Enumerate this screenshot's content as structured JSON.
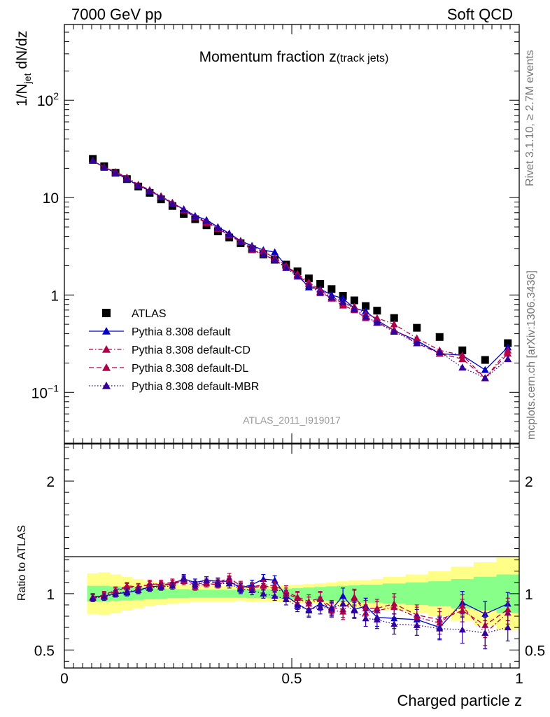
{
  "header": {
    "left": "7000 GeV pp",
    "right": "Soft QCD"
  },
  "side_labels": {
    "rivet": "Rivet 3.1.10, ≥ 2.7M events",
    "mcplots": "mcplots.cern.ch [arXiv:1306.3436]"
  },
  "chart_data": [
    {
      "type": "scatter",
      "panel": "main",
      "title": "Momentum fraction z(track jets)",
      "title_main": "Momentum fraction z",
      "title_sub": "(track jets)",
      "watermark": "ATLAS_2011_I919017",
      "ylabel": "1/N_jet dN/dz",
      "ylabel_parts": {
        "a": "1/N",
        "sub": "jet",
        "b": " dN/dz"
      },
      "yscale": "log",
      "ylim": [
        0.03,
        600
      ],
      "xlim": [
        0,
        1
      ],
      "yticks": [
        {
          "v": 0.1,
          "base": "10",
          "exp": "−1"
        },
        {
          "v": 1,
          "label": "1"
        },
        {
          "v": 10,
          "label": "10"
        },
        {
          "v": 100,
          "base": "10",
          "exp": "2"
        }
      ],
      "legend_position": "bottom-left",
      "x": [
        0.0625,
        0.0875,
        0.1125,
        0.1375,
        0.1625,
        0.1875,
        0.2125,
        0.2375,
        0.2625,
        0.2875,
        0.3125,
        0.3375,
        0.3625,
        0.3875,
        0.4125,
        0.4375,
        0.4625,
        0.4875,
        0.5125,
        0.5375,
        0.5625,
        0.5875,
        0.6125,
        0.6375,
        0.6625,
        0.6875,
        0.725,
        0.775,
        0.825,
        0.875,
        0.925,
        0.975
      ],
      "series": [
        {
          "name": "ATLAS",
          "color": "#000000",
          "marker": "square",
          "line": "none",
          "values": [
            25,
            21,
            18,
            15.5,
            13,
            11.2,
            9.6,
            8.2,
            6.8,
            6.0,
            5.2,
            4.5,
            3.9,
            3.4,
            2.95,
            2.6,
            2.3,
            2.05,
            1.75,
            1.48,
            1.3,
            1.15,
            0.98,
            0.88,
            0.77,
            0.69,
            0.58,
            0.46,
            0.37,
            0.27,
            0.215,
            0.32
          ]
        },
        {
          "name": "Pythia 8.308 default",
          "color": "#0000cc",
          "marker": "triangle",
          "line": "solid",
          "values": [
            24,
            20.5,
            18,
            15.5,
            13.3,
            11.8,
            10.2,
            8.8,
            7.6,
            6.5,
            5.9,
            5.0,
            4.3,
            3.6,
            3.2,
            2.9,
            2.75,
            2.0,
            1.6,
            1.2,
            1.15,
            1.0,
            0.92,
            0.73,
            0.68,
            0.55,
            0.43,
            0.34,
            0.25,
            0.24,
            0.17,
            0.29
          ]
        },
        {
          "name": "Pythia 8.308 default-CD",
          "color": "#b0004a",
          "marker": "triangle",
          "line": "dashdot",
          "values": [
            24,
            20.6,
            18.4,
            16.2,
            13.6,
            12.0,
            10.4,
            8.9,
            7.5,
            6.4,
            5.6,
            4.9,
            4.2,
            3.6,
            3.1,
            2.8,
            2.4,
            2.0,
            1.65,
            1.35,
            1.12,
            0.95,
            0.82,
            0.76,
            0.63,
            0.58,
            0.5,
            0.36,
            0.27,
            0.24,
            0.14,
            0.27
          ]
        },
        {
          "name": "Pythia 8.308 default-DL",
          "color": "#b0004a",
          "marker": "triangle",
          "line": "dashed",
          "values": [
            24,
            20.5,
            18.3,
            16.0,
            13.5,
            11.8,
            10.2,
            8.7,
            7.4,
            6.3,
            5.5,
            4.8,
            4.1,
            3.5,
            2.9,
            2.6,
            2.3,
            1.95,
            1.6,
            1.3,
            1.08,
            0.92,
            0.78,
            0.7,
            0.58,
            0.52,
            0.44,
            0.32,
            0.25,
            0.22,
            0.14,
            0.25
          ]
        },
        {
          "name": "Pythia 8.308 default-MBR",
          "color": "#33009e",
          "marker": "triangle",
          "line": "dotted",
          "values": [
            24,
            20.3,
            18.0,
            15.6,
            13.3,
            11.7,
            10.1,
            8.7,
            7.6,
            6.4,
            5.8,
            4.9,
            4.2,
            3.5,
            3.0,
            2.6,
            2.3,
            1.9,
            1.55,
            1.25,
            1.05,
            0.95,
            0.85,
            0.72,
            0.6,
            0.52,
            0.42,
            0.32,
            0.26,
            0.18,
            0.14,
            0.22
          ]
        }
      ]
    },
    {
      "type": "scatter",
      "panel": "ratio",
      "ylabel": "Ratio to ATLAS",
      "xlabel": "Charged particle z",
      "ylim": [
        0.34,
        2.33
      ],
      "xlim": [
        0,
        1
      ],
      "yticks": [
        {
          "v": 0.5,
          "label": "0.5"
        },
        {
          "v": 1,
          "label": "1"
        },
        {
          "v": 2,
          "label": "2"
        }
      ],
      "xticks": [
        {
          "v": 0,
          "label": "0"
        },
        {
          "v": 0.5,
          "label": "0.5"
        },
        {
          "v": 1,
          "label": "1"
        }
      ],
      "bins": [
        0.05,
        0.075,
        0.1,
        0.125,
        0.15,
        0.175,
        0.2,
        0.225,
        0.25,
        0.275,
        0.3,
        0.325,
        0.35,
        0.375,
        0.4,
        0.425,
        0.45,
        0.475,
        0.5,
        0.525,
        0.55,
        0.575,
        0.6,
        0.625,
        0.65,
        0.675,
        0.7,
        0.75,
        0.8,
        0.85,
        0.9,
        0.95,
        1.0
      ],
      "band_stat": [
        0.07,
        0.07,
        0.065,
        0.06,
        0.055,
        0.05,
        0.045,
        0.04,
        0.04,
        0.035,
        0.035,
        0.035,
        0.035,
        0.035,
        0.04,
        0.04,
        0.04,
        0.045,
        0.05,
        0.055,
        0.06,
        0.065,
        0.07,
        0.075,
        0.08,
        0.08,
        0.09,
        0.1,
        0.11,
        0.13,
        0.15,
        0.17
      ],
      "band_total": [
        0.18,
        0.19,
        0.17,
        0.15,
        0.13,
        0.11,
        0.1,
        0.09,
        0.08,
        0.075,
        0.07,
        0.07,
        0.07,
        0.065,
        0.07,
        0.07,
        0.07,
        0.075,
        0.08,
        0.085,
        0.09,
        0.1,
        0.11,
        0.12,
        0.12,
        0.13,
        0.15,
        0.17,
        0.2,
        0.24,
        0.28,
        0.32
      ],
      "band_colors": {
        "total": "#ffff88",
        "stat": "#88ff88"
      },
      "series": [
        {
          "name": "Pythia 8.308 default",
          "color": "#0000cc",
          "marker": "triangle",
          "line": "solid",
          "values": [
            0.97,
            0.98,
            1.0,
            1.01,
            1.03,
            1.06,
            1.07,
            1.09,
            1.13,
            1.1,
            1.12,
            1.11,
            1.11,
            1.05,
            1.08,
            1.13,
            1.12,
            0.98,
            0.91,
            0.85,
            0.91,
            0.86,
            0.98,
            0.86,
            0.89,
            0.79,
            0.78,
            0.77,
            0.7,
            0.92,
            0.82,
            0.91
          ],
          "errors": [
            0.03,
            0.03,
            0.03,
            0.03,
            0.03,
            0.03,
            0.03,
            0.03,
            0.03,
            0.03,
            0.03,
            0.03,
            0.04,
            0.04,
            0.04,
            0.04,
            0.04,
            0.05,
            0.05,
            0.06,
            0.06,
            0.06,
            0.07,
            0.07,
            0.07,
            0.08,
            0.09,
            0.09,
            0.1,
            0.1,
            0.11,
            0.1
          ]
        },
        {
          "name": "Pythia 8.308 default-CD",
          "color": "#b0004a",
          "marker": "triangle",
          "line": "dashdot",
          "values": [
            0.96,
            0.98,
            1.02,
            1.06,
            1.05,
            1.09,
            1.08,
            1.09,
            1.11,
            1.06,
            1.09,
            1.08,
            1.12,
            1.06,
            1.05,
            1.07,
            1.05,
            1.0,
            0.96,
            0.91,
            0.95,
            0.85,
            0.84,
            0.97,
            0.83,
            0.85,
            0.88,
            0.79,
            0.74,
            0.89,
            0.65,
            0.83
          ],
          "errors": [
            0.03,
            0.03,
            0.03,
            0.03,
            0.03,
            0.03,
            0.03,
            0.03,
            0.03,
            0.03,
            0.03,
            0.03,
            0.04,
            0.04,
            0.04,
            0.04,
            0.04,
            0.05,
            0.05,
            0.06,
            0.06,
            0.06,
            0.07,
            0.07,
            0.07,
            0.08,
            0.09,
            0.09,
            0.1,
            0.1,
            0.11,
            0.1
          ]
        },
        {
          "name": "Pythia 8.308 default-DL",
          "color": "#b0004a",
          "marker": "triangle",
          "line": "dashed",
          "values": [
            0.97,
            0.99,
            1.03,
            1.07,
            1.06,
            1.08,
            1.09,
            1.1,
            1.12,
            1.08,
            1.1,
            1.1,
            1.14,
            1.07,
            1.06,
            1.08,
            1.07,
            1.02,
            0.97,
            0.93,
            0.96,
            0.88,
            0.86,
            0.96,
            0.87,
            0.87,
            0.91,
            0.81,
            0.77,
            0.85,
            0.72,
            0.86
          ],
          "errors": [
            0.03,
            0.03,
            0.03,
            0.03,
            0.03,
            0.03,
            0.03,
            0.03,
            0.03,
            0.03,
            0.03,
            0.03,
            0.04,
            0.04,
            0.04,
            0.04,
            0.04,
            0.05,
            0.05,
            0.06,
            0.06,
            0.06,
            0.07,
            0.07,
            0.07,
            0.08,
            0.09,
            0.09,
            0.1,
            0.1,
            0.11,
            0.1
          ]
        },
        {
          "name": "Pythia 8.308 default-MBR",
          "color": "#33009e",
          "marker": "triangle",
          "line": "dotted",
          "values": [
            0.96,
            0.97,
            1.0,
            1.02,
            1.03,
            1.05,
            1.06,
            1.07,
            1.14,
            1.08,
            1.12,
            1.09,
            1.09,
            1.04,
            1.03,
            1.0,
            0.98,
            0.95,
            0.89,
            0.86,
            0.88,
            0.87,
            0.91,
            0.85,
            0.78,
            0.77,
            0.73,
            0.72,
            0.69,
            0.68,
            0.65,
            0.7
          ],
          "errors": [
            0.03,
            0.03,
            0.03,
            0.03,
            0.03,
            0.03,
            0.03,
            0.03,
            0.03,
            0.03,
            0.03,
            0.03,
            0.04,
            0.04,
            0.04,
            0.04,
            0.04,
            0.05,
            0.05,
            0.06,
            0.06,
            0.06,
            0.07,
            0.07,
            0.07,
            0.08,
            0.09,
            0.09,
            0.1,
            0.12,
            0.14,
            0.12
          ]
        }
      ]
    }
  ]
}
